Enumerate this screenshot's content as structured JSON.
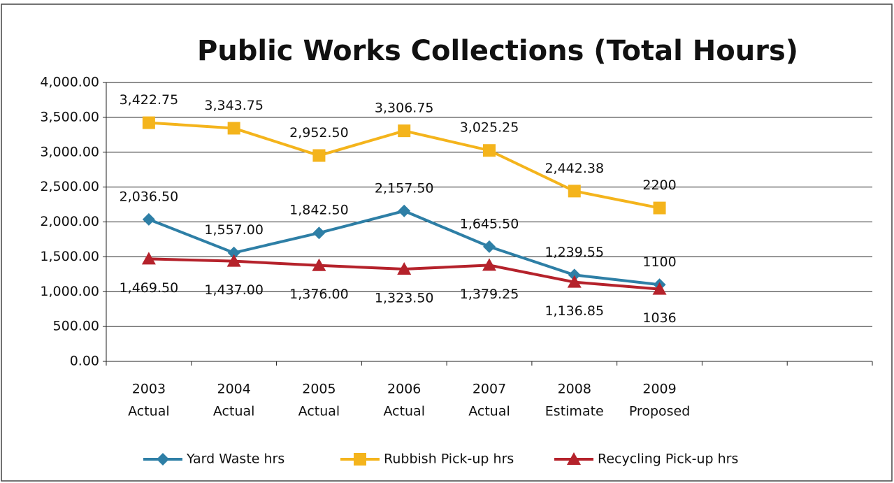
{
  "chart_data": {
    "type": "line",
    "title": "Public Works Collections (Total Hours)",
    "categories": [
      [
        "2003",
        "Actual"
      ],
      [
        "2004",
        "Actual"
      ],
      [
        "2005",
        "Actual"
      ],
      [
        "2006",
        "Actual"
      ],
      [
        "2007",
        "Actual"
      ],
      [
        "2008",
        "Estimate"
      ],
      [
        "2009",
        "Proposed"
      ],
      null,
      null
    ],
    "series": [
      {
        "name": "Yard Waste hrs",
        "color": "#2e7fa6",
        "values": [
          2036.5,
          1557,
          1842.5,
          2157.5,
          1645.5,
          1239.55,
          1100,
          null,
          null
        ],
        "value_labels": [
          "2,036.50",
          "1,557.00",
          "1,842.50",
          "2,157.50",
          "1,645.50",
          "1,239.55",
          "1100",
          null,
          null
        ]
      },
      {
        "name": "Rubbish Pick-up hrs",
        "color": "#f4b41c",
        "values": [
          3422.75,
          3343.75,
          2952.5,
          3306.75,
          3025.25,
          2442.38,
          2200,
          null,
          null
        ],
        "value_labels": [
          "3,422.75",
          "3,343.75",
          "2,952.50",
          "3,306.75",
          "3,025.25",
          "2,442.38",
          "2200",
          null,
          null
        ]
      },
      {
        "name": "Recycling Pick-up hrs",
        "color": "#b5222b",
        "values": [
          1469.5,
          1437,
          1376,
          1323.5,
          1379.25,
          1136.85,
          1036,
          null,
          null
        ],
        "value_labels": [
          "1,469.50",
          "1,437.00",
          "1,376.00",
          "1,323.50",
          "1,379.25",
          "1,136.85",
          "1036",
          null,
          null
        ]
      }
    ],
    "ylim": [
      0,
      4000
    ],
    "yticks": [
      {
        "value": 0,
        "label": "0.00"
      },
      {
        "value": 500,
        "label": "500.00"
      },
      {
        "value": 1000,
        "label": "1,000.00"
      },
      {
        "value": 1500,
        "label": "1,500.00"
      },
      {
        "value": 2000,
        "label": "2,000.00"
      },
      {
        "value": 2500,
        "label": "2,500.00"
      },
      {
        "value": 3000,
        "label": "3,000.00"
      },
      {
        "value": 3500,
        "label": "3,500.00"
      },
      {
        "value": 4000,
        "label": "4,000.00"
      }
    ],
    "grid": true,
    "legend": "bottom"
  }
}
